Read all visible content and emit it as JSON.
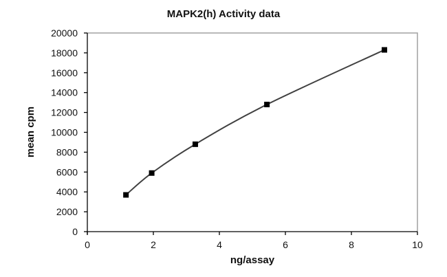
{
  "chart_data": {
    "type": "line",
    "title": "MAPK2(h) Activity data",
    "xlabel": "ng/assay",
    "ylabel": "mean cpm",
    "xlim": [
      0,
      10
    ],
    "ylim": [
      0,
      20000
    ],
    "xticks": [
      0,
      2,
      4,
      6,
      8,
      10
    ],
    "yticks": [
      0,
      2000,
      4000,
      6000,
      8000,
      10000,
      12000,
      14000,
      16000,
      18000,
      20000
    ],
    "grid": false,
    "legend": null,
    "marker": "square",
    "smooth": true,
    "series": [
      {
        "name": "MAPK2(h)",
        "x": [
          1.17,
          1.95,
          3.27,
          5.44,
          9.0
        ],
        "y": [
          3700,
          5900,
          8800,
          12800,
          18300
        ]
      }
    ]
  },
  "colors": {
    "line": "#404040",
    "marker": "#000000",
    "axis": "#000000",
    "plot_border": "#a0a0a0"
  }
}
